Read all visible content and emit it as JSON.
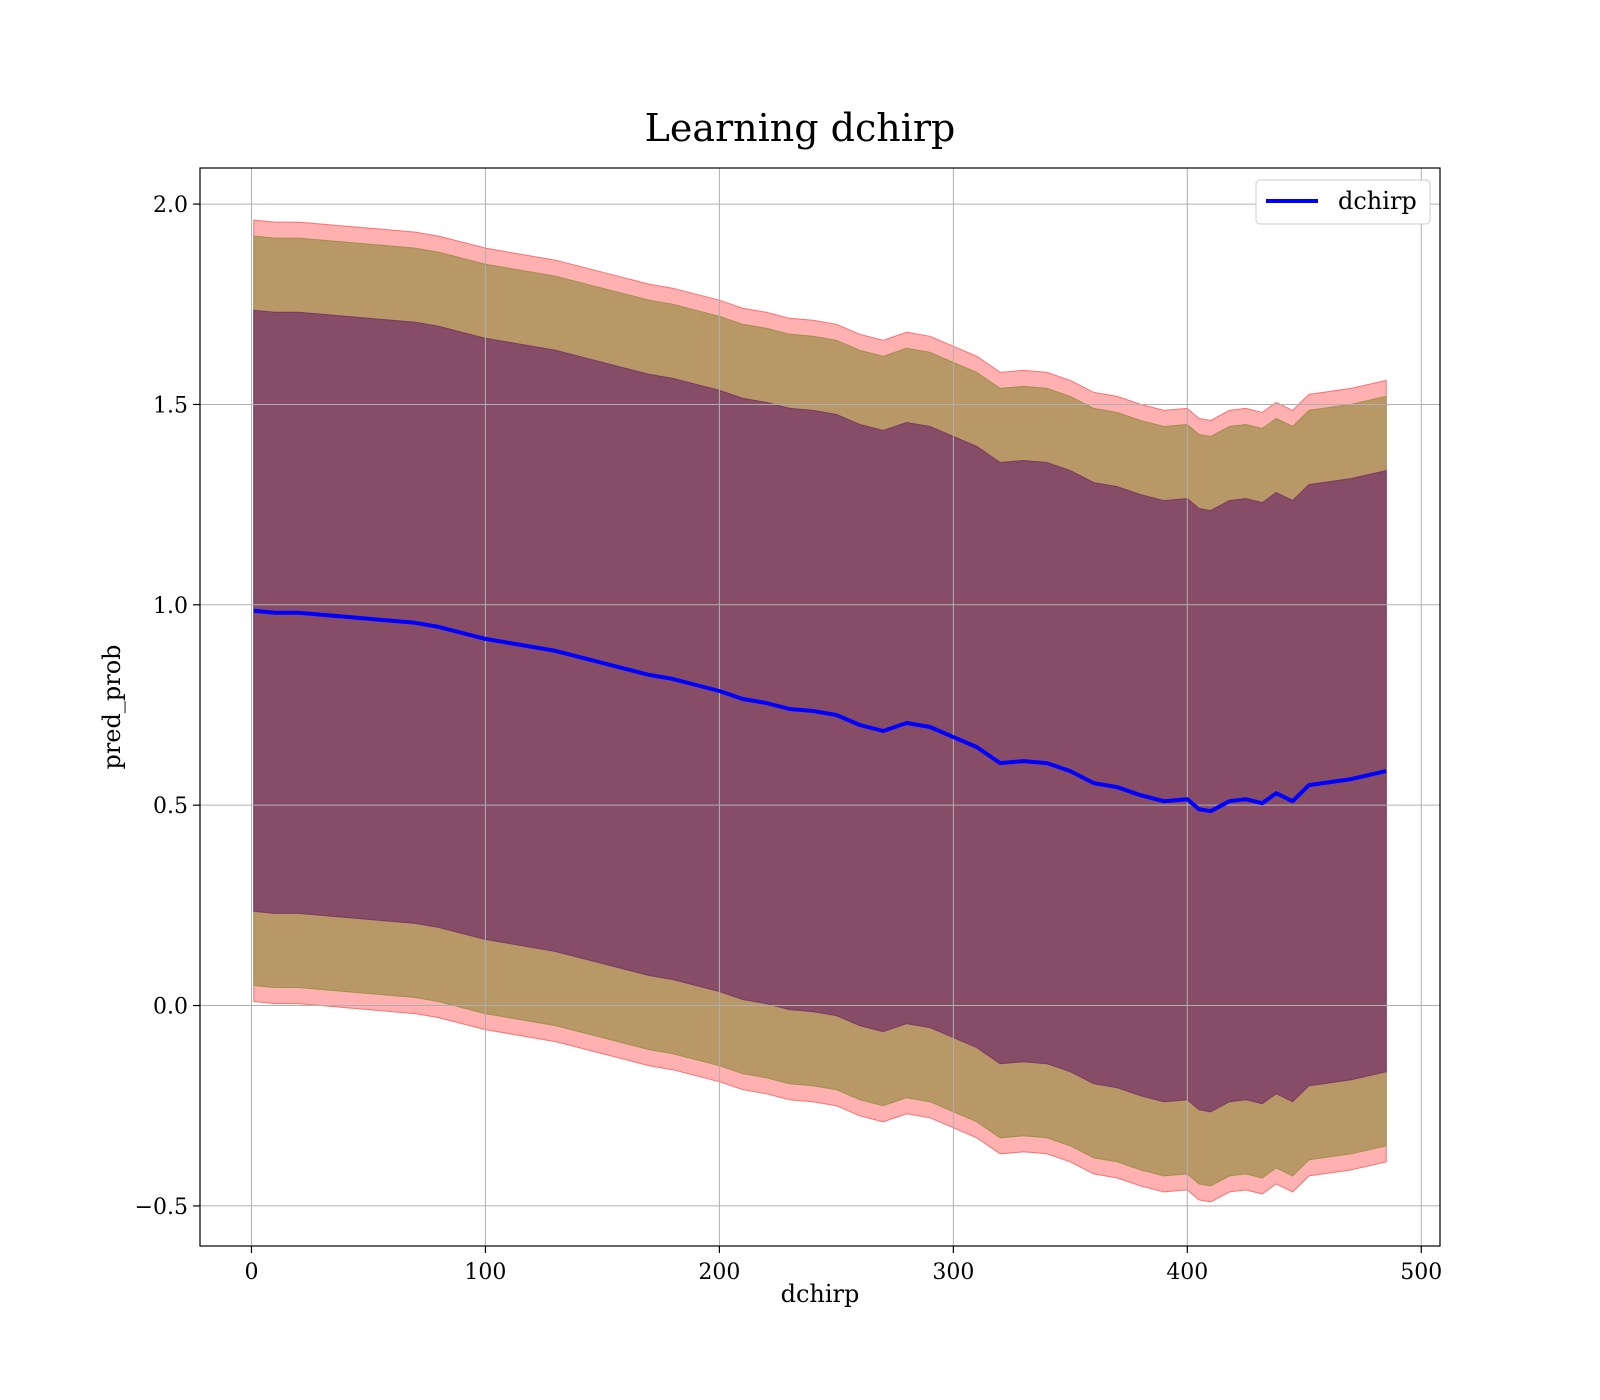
{
  "chart_data": {
    "type": "line",
    "title": "Learning dchirp",
    "xlabel": "dchirp",
    "ylabel": "pred_prob",
    "xlim": [
      -22,
      508
    ],
    "ylim": [
      -0.6,
      2.09
    ],
    "xticks": [
      0,
      100,
      200,
      300,
      400,
      500
    ],
    "yticks": [
      -0.5,
      0.0,
      0.5,
      1.0,
      1.5,
      2.0
    ],
    "xtick_labels": [
      "0",
      "100",
      "200",
      "300",
      "400",
      "500"
    ],
    "ytick_labels": [
      "−0.5",
      "0.0",
      "0.5",
      "1.0",
      "1.5",
      "2.0"
    ],
    "grid": true,
    "legend": {
      "position": "top-right",
      "entries": [
        "dchirp"
      ]
    },
    "colors": {
      "line": "#0000ff",
      "band_outer": "#ff6f6f",
      "band_mid": "#a0904e",
      "band_inner": "#7a3a66"
    },
    "series": [
      {
        "name": "dchirp",
        "x": [
          1,
          10,
          20,
          30,
          40,
          50,
          60,
          70,
          80,
          90,
          100,
          110,
          120,
          130,
          140,
          150,
          160,
          170,
          180,
          190,
          200,
          210,
          220,
          230,
          240,
          250,
          260,
          270,
          280,
          290,
          300,
          310,
          320,
          330,
          340,
          350,
          360,
          370,
          380,
          390,
          400,
          405,
          410,
          418,
          425,
          432,
          438,
          445,
          452,
          470,
          485
        ],
        "values": [
          0.985,
          0.98,
          0.98,
          0.975,
          0.97,
          0.965,
          0.96,
          0.955,
          0.945,
          0.93,
          0.915,
          0.905,
          0.895,
          0.885,
          0.87,
          0.855,
          0.84,
          0.825,
          0.815,
          0.8,
          0.785,
          0.765,
          0.755,
          0.74,
          0.735,
          0.725,
          0.7,
          0.685,
          0.705,
          0.695,
          0.67,
          0.645,
          0.605,
          0.61,
          0.605,
          0.585,
          0.555,
          0.545,
          0.525,
          0.51,
          0.515,
          0.49,
          0.485,
          0.51,
          0.515,
          0.505,
          0.53,
          0.51,
          0.55,
          0.565,
          0.585
        ]
      }
    ],
    "bands": [
      {
        "name": "outer",
        "lower_offset": 0.975,
        "upper_offset": 0.975
      },
      {
        "name": "mid",
        "lower_offset": 0.935,
        "upper_offset": 0.935
      },
      {
        "name": "inner",
        "lower_offset": 0.75,
        "upper_offset": 0.75
      }
    ]
  }
}
